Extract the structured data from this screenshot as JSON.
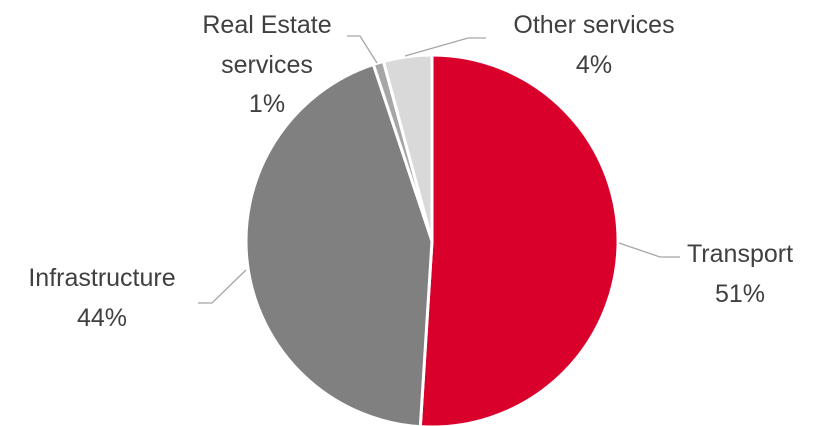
{
  "chart_data": {
    "type": "pie",
    "title": "",
    "start_angle_deg": 0,
    "direction": "clockwise",
    "slices": [
      {
        "name": "Transport",
        "percent_label": "51%",
        "value": 51.0,
        "color": "#d9002b"
      },
      {
        "name": "Infrastructure",
        "percent_label": "44%",
        "value": 43.9,
        "color": "#808080"
      },
      {
        "name": "Real Estate services",
        "name_lines": [
          "Real Estate",
          "services"
        ],
        "percent_label": "1%",
        "value": 0.9,
        "color": "#a6a6a6"
      },
      {
        "name": "Other services",
        "percent_label": "4%",
        "value": 4.2,
        "color": "#d9d9d9"
      }
    ],
    "legend": "none",
    "data_labels": "outside-with-leader-lines"
  }
}
